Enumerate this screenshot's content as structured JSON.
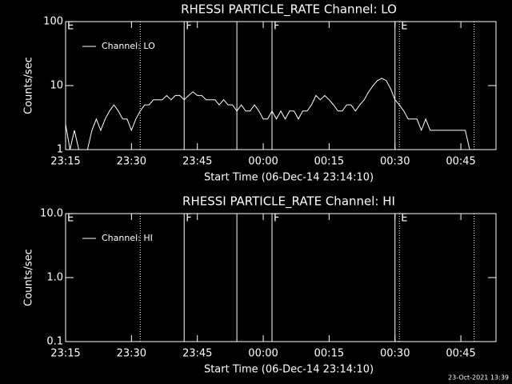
{
  "chart_data": [
    {
      "type": "line",
      "title": "RHESSI PARTICLE_RATE Channel: LO",
      "xlabel": "Start Time (06-Dec-14 23:14:10)",
      "ylabel": "Counts/sec",
      "x": [
        "23:15",
        "23:16",
        "23:17",
        "23:18",
        "23:19",
        "23:20",
        "23:21",
        "23:22",
        "23:23",
        "23:24",
        "23:25",
        "23:26",
        "23:27",
        "23:28",
        "23:29",
        "23:30",
        "23:31",
        "23:32",
        "23:33",
        "23:34",
        "23:35",
        "23:36",
        "23:37",
        "23:38",
        "23:39",
        "23:40",
        "23:41",
        "23:42",
        "23:43",
        "23:44",
        "23:45",
        "23:46",
        "23:47",
        "23:48",
        "23:49",
        "23:50",
        "23:51",
        "23:52",
        "23:53",
        "23:54",
        "23:55",
        "23:56",
        "23:57",
        "23:58",
        "23:59",
        "00:00",
        "00:01",
        "00:02",
        "00:03",
        "00:04",
        "00:05",
        "00:06",
        "00:07",
        "00:08",
        "00:09",
        "00:10",
        "00:11",
        "00:12",
        "00:13",
        "00:14",
        "00:15",
        "00:16",
        "00:17",
        "00:18",
        "00:19",
        "00:20",
        "00:21",
        "00:22",
        "00:23",
        "00:24",
        "00:25",
        "00:26",
        "00:27",
        "00:28",
        "00:29",
        "00:30",
        "00:31",
        "00:32",
        "00:33",
        "00:34",
        "00:35",
        "00:36",
        "00:37",
        "00:38",
        "00:39",
        "00:40",
        "00:41",
        "00:42",
        "00:43",
        "00:44",
        "00:45",
        "00:46",
        "00:47"
      ],
      "series": [
        {
          "name": "Channel: LO",
          "color": "#ffffff",
          "values": [
            2.5,
            1,
            2,
            1,
            1,
            1,
            2,
            3,
            2,
            3,
            4,
            5,
            4,
            3,
            3,
            2,
            3,
            4,
            5,
            5,
            6,
            6,
            6,
            7,
            6,
            7,
            7,
            6,
            7,
            8,
            7,
            7,
            6,
            6,
            6,
            5,
            6,
            5,
            5,
            4,
            5,
            4,
            4,
            5,
            4,
            3,
            3,
            4,
            3,
            4,
            3,
            4,
            4,
            3,
            4,
            4,
            5,
            7,
            6,
            7,
            6,
            5,
            4,
            4,
            5,
            5,
            4,
            5,
            6,
            8,
            10,
            12,
            13,
            12,
            9,
            6,
            5,
            4,
            3,
            3,
            3,
            2,
            3,
            2,
            2,
            2,
            2,
            2,
            2,
            2,
            2,
            2,
            1
          ]
        }
      ],
      "xlim": [
        "23:15",
        "00:53"
      ],
      "xticks": [
        "23:15",
        "23:30",
        "23:45",
        "00:00",
        "00:15",
        "00:30",
        "00:45"
      ],
      "ylim": [
        1,
        100
      ],
      "yticks": [
        1,
        10,
        100
      ],
      "log_y": true,
      "legend": "upper left",
      "markers": [
        {
          "x": "23:15",
          "style": "none",
          "label": "E"
        },
        {
          "x": "23:32",
          "style": "dotted"
        },
        {
          "x": "23:42",
          "style": "solid",
          "label": "F"
        },
        {
          "x": "23:54",
          "style": "solid"
        },
        {
          "x": "00:02",
          "style": "solid",
          "label": "F"
        },
        {
          "x": "00:30",
          "style": "solid"
        },
        {
          "x": "00:31",
          "style": "dotted",
          "label": "E"
        },
        {
          "x": "00:48",
          "style": "dotted"
        }
      ]
    },
    {
      "type": "line",
      "title": "RHESSI PARTICLE_RATE Channel: HI",
      "xlabel": "Start Time (06-Dec-14 23:14:10)",
      "ylabel": "Counts/sec",
      "x": [],
      "series": [
        {
          "name": "Channel: HI",
          "color": "#ffffff",
          "values": []
        }
      ],
      "xlim": [
        "23:15",
        "00:53"
      ],
      "xticks": [
        "23:15",
        "23:30",
        "23:45",
        "00:00",
        "00:15",
        "00:30",
        "00:45"
      ],
      "ylim": [
        0.1,
        10
      ],
      "yticks": [
        0.1,
        {
          "value": 1,
          "label": "1.0"
        },
        {
          "value": 10,
          "label": "10.0"
        }
      ],
      "log_y": true,
      "legend": "upper left",
      "markers": [
        {
          "x": "23:15",
          "style": "none",
          "label": "E"
        },
        {
          "x": "23:32",
          "style": "dotted"
        },
        {
          "x": "23:42",
          "style": "solid",
          "label": "F"
        },
        {
          "x": "23:54",
          "style": "solid"
        },
        {
          "x": "00:02",
          "style": "solid",
          "label": "F"
        },
        {
          "x": "00:30",
          "style": "solid"
        },
        {
          "x": "00:31",
          "style": "dotted",
          "label": "E"
        },
        {
          "x": "00:48",
          "style": "dotted"
        }
      ]
    }
  ],
  "footer": "23-Oct-2021 13:39"
}
